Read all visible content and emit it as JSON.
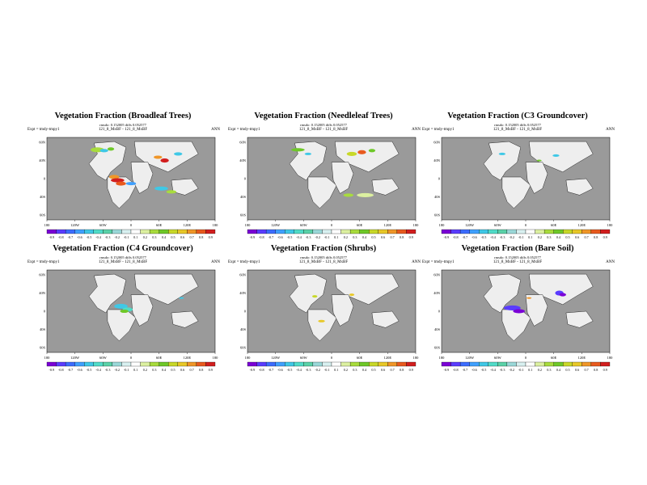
{
  "colorbar": {
    "labels": [
      "-0.9",
      "-0.8",
      "-0.7",
      "-0.6",
      "-0.5",
      "-0.4",
      "-0.3",
      "-0.2",
      "-0.1",
      "0.1",
      "0.2",
      "0.3",
      "0.4",
      "0.5",
      "0.6",
      "0.7",
      "0.8",
      "0.9"
    ],
    "colors": [
      "#7a00d6",
      "#5a3cff",
      "#3c6cff",
      "#3fa0ff",
      "#3fc8e6",
      "#50dcc8",
      "#5ad2a8",
      "#9ad8d8",
      "#d8f0f0",
      "#ffffff",
      "#dcf0a0",
      "#a8dc3c",
      "#6ec828",
      "#c8d828",
      "#e8c828",
      "#f09628",
      "#e85a1e",
      "#d21e1e"
    ]
  },
  "map": {
    "ocean_color": "#9a9a9a",
    "land_color": "#eeeeee",
    "x_ticks": [
      "180",
      "120W",
      "60W",
      "0",
      "60E",
      "120E",
      "180"
    ],
    "y_ticks": [
      "60N",
      "40N",
      "0",
      "40S",
      "60S"
    ]
  },
  "panels": [
    {
      "title": "Vegetation Fraction (Broadleaf Trees)",
      "stats": "rmsdo: 0.152005 diffs 0.052577",
      "expt": "Expt = tmdy-tmpy1",
      "case": "121_8_MxBF - 121_8_MxBF",
      "season": "ANN"
    },
    {
      "title": "Vegetation Fraction (Needleleaf Trees)",
      "stats": "rmsdo: 0.152005 diffs 0.052577",
      "expt": "Expt = tmdy-tmpy1",
      "case": "121_8_MxBF - 121_8_MxBF",
      "season": "ANN"
    },
    {
      "title": "Vegetation Fraction (C3 Groundcover)",
      "stats": "rmsdo: 0.152005 diffs 0.052577",
      "expt": "Expt = tmdy-tmpy1",
      "case": "121_8_MxBF - 121_8_MxBF",
      "season": "ANN"
    },
    {
      "title": "Vegetation Fraction (C4 Groundcover)",
      "stats": "rmsdo: 0.152005 diffs 0.052577",
      "expt": "Expt = tmdy-tmpy1",
      "case": "121_8_MxBF - 121_8_MxBF",
      "season": "ANN"
    },
    {
      "title": "Vegetation Fraction (Shrubs)",
      "stats": "rmsdo: 0.152005 diffs 0.052577",
      "expt": "Expt = tmdy-tmpy1",
      "case": "121_8_MxBF - 121_8_MxBF",
      "season": "ANN"
    },
    {
      "title": "Vegetation Fraction (Bare Soil)",
      "stats": "rmsdo: 0.152005 diffs 0.052577",
      "expt": "Expt = tmdy-tmpy1",
      "case": "121_8_MxBF - 121_8_MxBF",
      "season": "ANN"
    }
  ]
}
